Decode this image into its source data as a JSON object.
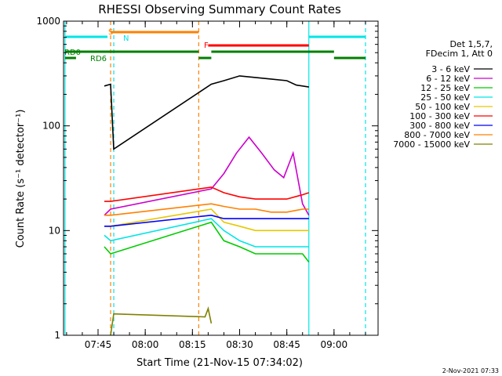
{
  "chart_data": {
    "type": "line",
    "title": "RHESSI Observing Summary Count Rates",
    "xlabel": "Start Time (21-Nov-15 07:34:02)",
    "ylabel": "Count Rate (s⁻¹ detector⁻¹)",
    "ylim": [
      1,
      1000
    ],
    "y_scale": "log",
    "xlim": [
      "07:34:02",
      "09:14:00"
    ],
    "x_ticks": [
      "07:45",
      "08:00",
      "08:15",
      "08:30",
      "08:45",
      "09:00"
    ],
    "y_ticks": [
      "1",
      "10",
      "100",
      "1000"
    ],
    "legend_header": [
      "Det 1,5,7,",
      "FDecim 1, Att 0"
    ],
    "timestamp": "2-Nov-2021 07:33",
    "flag_labels": {
      "S": "S",
      "N": "N",
      "F": "F",
      "RD0": "RD0",
      "RD6": "RD6"
    },
    "series": [
      {
        "name": "3 - 6 keV",
        "color": "#000000",
        "points": [
          [
            "07:47",
            240
          ],
          [
            "07:49",
            250
          ],
          [
            "07:50",
            60
          ],
          [
            "08:21",
            250
          ],
          [
            "08:25",
            270
          ],
          [
            "08:30",
            300
          ],
          [
            "08:35",
            290
          ],
          [
            "08:40",
            280
          ],
          [
            "08:45",
            270
          ],
          [
            "08:48",
            245
          ],
          [
            "08:52",
            235
          ]
        ]
      },
      {
        "name": "6 - 12 keV",
        "color": "#cc00cc",
        "points": [
          [
            "07:47",
            14
          ],
          [
            "07:49",
            16
          ],
          [
            "08:21",
            25
          ],
          [
            "08:25",
            35
          ],
          [
            "08:29",
            55
          ],
          [
            "08:33",
            78
          ],
          [
            "08:37",
            55
          ],
          [
            "08:41",
            38
          ],
          [
            "08:44",
            32
          ],
          [
            "08:47",
            55
          ],
          [
            "08:50",
            18
          ],
          [
            "08:52",
            14
          ]
        ]
      },
      {
        "name": "12 - 25 keV",
        "color": "#00cc00",
        "points": [
          [
            "07:47",
            7
          ],
          [
            "07:49",
            6
          ],
          [
            "08:21",
            12
          ],
          [
            "08:25",
            8
          ],
          [
            "08:30",
            7
          ],
          [
            "08:35",
            6
          ],
          [
            "08:40",
            6
          ],
          [
            "08:45",
            6
          ],
          [
            "08:50",
            6
          ],
          [
            "08:52",
            5
          ]
        ]
      },
      {
        "name": "25 - 50 keV",
        "color": "#00e5e5",
        "points": [
          [
            "07:47",
            9
          ],
          [
            "07:49",
            8
          ],
          [
            "08:21",
            13
          ],
          [
            "08:25",
            10
          ],
          [
            "08:30",
            8
          ],
          [
            "08:35",
            7
          ],
          [
            "08:40",
            7
          ],
          [
            "08:45",
            7
          ],
          [
            "08:50",
            7
          ],
          [
            "08:52",
            7
          ]
        ]
      },
      {
        "name": "50 - 100 keV",
        "color": "#e6c800",
        "points": [
          [
            "07:47",
            11
          ],
          [
            "07:49",
            11
          ],
          [
            "08:21",
            16
          ],
          [
            "08:25",
            12
          ],
          [
            "08:30",
            11
          ],
          [
            "08:35",
            10
          ],
          [
            "08:40",
            10
          ],
          [
            "08:45",
            10
          ],
          [
            "08:50",
            10
          ],
          [
            "08:52",
            10
          ]
        ]
      },
      {
        "name": "100 - 300 keV",
        "color": "#ff0000",
        "points": [
          [
            "07:47",
            19
          ],
          [
            "07:49",
            19
          ],
          [
            "08:21",
            26
          ],
          [
            "08:25",
            23
          ],
          [
            "08:30",
            21
          ],
          [
            "08:35",
            20
          ],
          [
            "08:40",
            20
          ],
          [
            "08:45",
            20
          ],
          [
            "08:50",
            22
          ],
          [
            "08:52",
            23
          ]
        ]
      },
      {
        "name": "300 - 800 keV",
        "color": "#0000ff",
        "points": [
          [
            "07:47",
            11
          ],
          [
            "07:49",
            11
          ],
          [
            "08:21",
            14
          ],
          [
            "08:25",
            13
          ],
          [
            "08:30",
            13
          ],
          [
            "08:35",
            13
          ],
          [
            "08:40",
            13
          ],
          [
            "08:45",
            13
          ],
          [
            "08:50",
            13
          ],
          [
            "08:52",
            13
          ]
        ]
      },
      {
        "name": "800 - 7000 keV",
        "color": "#ff8000",
        "points": [
          [
            "07:47",
            14
          ],
          [
            "07:49",
            14
          ],
          [
            "08:21",
            18
          ],
          [
            "08:25",
            17
          ],
          [
            "08:30",
            16
          ],
          [
            "08:35",
            16
          ],
          [
            "08:40",
            15
          ],
          [
            "08:45",
            15
          ],
          [
            "08:50",
            16
          ],
          [
            "08:52",
            16
          ]
        ]
      },
      {
        "name": "7000 - 15000 keV",
        "color": "#808000",
        "points": [
          [
            "07:49",
            1
          ],
          [
            "07:50",
            1.6
          ],
          [
            "08:19",
            1.5
          ],
          [
            "08:20",
            1.8
          ],
          [
            "08:21",
            1.3
          ]
        ]
      }
    ]
  }
}
